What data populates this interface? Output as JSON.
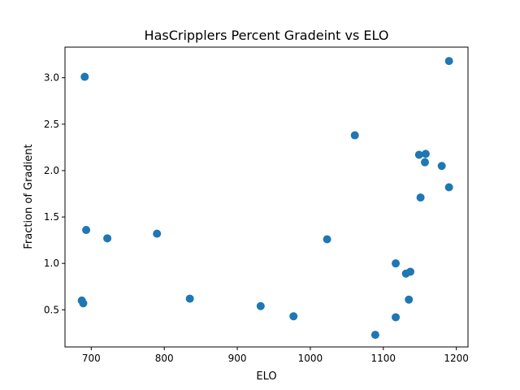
{
  "chart_data": {
    "type": "scatter",
    "title": "HasCripplers Percent Gradeint vs ELO",
    "xlabel": "ELO",
    "ylabel": "Fraction of Gradient",
    "xlim": [
      664,
      1216
    ],
    "ylim": [
      0.1,
      3.33
    ],
    "xticks": [
      700,
      800,
      900,
      1000,
      1100,
      1200
    ],
    "yticks": [
      0.5,
      1.0,
      1.5,
      2.0,
      2.5,
      3.0
    ],
    "xtick_labels": [
      "700",
      "800",
      "900",
      "1000",
      "1100",
      "1200"
    ],
    "ytick_labels": [
      "0.5",
      "1.0",
      "1.5",
      "2.0",
      "2.5",
      "3.0"
    ],
    "grid": false,
    "marker_color": "#1f77b4",
    "series": [
      {
        "x": [
          691,
          693,
          687,
          689,
          722,
          790,
          835,
          932,
          977,
          1023,
          1061,
          1089,
          1117,
          1117,
          1131,
          1135,
          1137,
          1149,
          1151,
          1157,
          1158,
          1180,
          1190,
          1190
        ],
        "y": [
          3.01,
          1.36,
          0.6,
          0.57,
          1.27,
          1.32,
          0.62,
          0.54,
          0.43,
          1.26,
          2.38,
          0.23,
          1.0,
          0.42,
          0.89,
          0.61,
          0.91,
          2.17,
          1.71,
          2.09,
          2.18,
          2.05,
          3.18,
          1.82
        ]
      }
    ]
  }
}
